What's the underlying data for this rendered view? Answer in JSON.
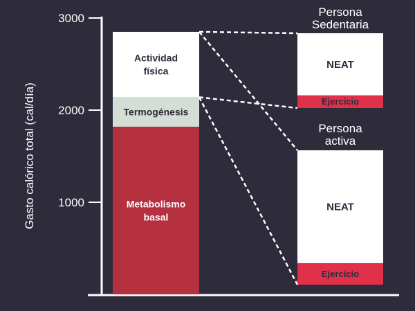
{
  "colors": {
    "background": "#2e2b3b",
    "axis": "#ffffff",
    "activity": "#ffffff",
    "thermogenesis": "#d4ddd6",
    "basal": "#b5303f",
    "exercise": "#e0304a",
    "neat": "#ffffff",
    "dark_text": "#2e2b3b",
    "light_text": "#ffffff"
  },
  "chart_data": {
    "type": "bar",
    "ylabel": "Gasto calórico total (cal/día)",
    "ylim": [
      0,
      3000
    ],
    "yticks": [
      1000,
      2000,
      3000
    ],
    "ytick_labels": [
      "1000",
      "2000",
      "3000"
    ],
    "main_bar": {
      "segments": [
        {
          "name": "Metabolismo basal",
          "lines": [
            "Metabolismo",
            "basal"
          ],
          "from": 0,
          "to": 1820,
          "color_key": "basal",
          "text_color_key": "light_text"
        },
        {
          "name": "Termogénesis",
          "lines": [
            "Termogénesis"
          ],
          "from": 1820,
          "to": 2140,
          "color_key": "thermogenesis",
          "text_color_key": "dark_text"
        },
        {
          "name": "Actividad física",
          "lines": [
            "Actividad",
            "física"
          ],
          "from": 2140,
          "to": 2850,
          "color_key": "activity",
          "text_color_key": "dark_text"
        }
      ]
    },
    "breakdowns": [
      {
        "title": [
          "Persona",
          "Sedentaria"
        ],
        "segments": [
          {
            "name": "Ejercicio",
            "share": 0.17,
            "color_key": "exercise",
            "text_color_key": "dark_text"
          },
          {
            "name": "NEAT",
            "share": 0.83,
            "color_key": "neat",
            "text_color_key": "dark_text"
          }
        ]
      },
      {
        "title": [
          "Persona",
          "activa"
        ],
        "segments": [
          {
            "name": "Ejercicio",
            "share": 0.16,
            "color_key": "exercise",
            "text_color_key": "dark_text"
          },
          {
            "name": "NEAT",
            "share": 0.84,
            "color_key": "neat",
            "text_color_key": "dark_text"
          }
        ]
      }
    ]
  }
}
